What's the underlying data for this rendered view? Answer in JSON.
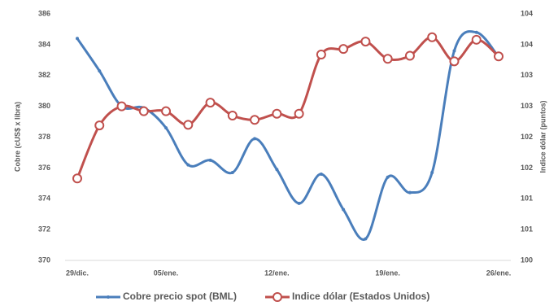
{
  "chart_data": {
    "type": "line",
    "categories": [
      "29/dic.",
      null,
      null,
      null,
      "05/ene.",
      null,
      null,
      null,
      null,
      "12/ene.",
      null,
      null,
      null,
      null,
      "19/ene.",
      null,
      null,
      null,
      null,
      "26/ene."
    ],
    "ylabel": "Cobre (cUS$ x libra)",
    "y2label": "Indice dólar (puntos)",
    "ylim": [
      370,
      386
    ],
    "yticks": [
      370,
      372,
      374,
      376,
      378,
      380,
      382,
      384,
      386
    ],
    "y2lim": [
      100,
      104
    ],
    "y2ticks": [
      100,
      {
        "value": 100.5,
        "label": "101"
      },
      101,
      {
        "value": 101.5,
        "label": "102"
      },
      102,
      {
        "value": 102.5,
        "label": "103"
      },
      103,
      {
        "value": 103.5,
        "label": "104"
      },
      104
    ],
    "series": [
      {
        "name": "Cobre precio spot (BML)",
        "color": "#4a7ebb",
        "marker": "dot",
        "values": [
          384.4,
          382.3,
          380.0,
          379.9,
          378.6,
          376.2,
          376.5,
          375.7,
          377.9,
          375.9,
          373.7,
          375.6,
          373.3,
          371.4,
          375.4,
          374.4,
          375.7,
          383.6,
          384.8,
          383.2
        ]
      },
      {
        "name": "Indice dólar (Estados Unidos)",
        "color": "#c0504d",
        "marker": "ring",
        "axis": "y2",
        "values": [
          101.33,
          102.19,
          102.5,
          102.42,
          102.42,
          102.2,
          102.56,
          102.35,
          102.28,
          102.38,
          102.38,
          103.34,
          103.43,
          103.55,
          103.27,
          103.32,
          103.62,
          103.23,
          103.58,
          103.31
        ]
      }
    ],
    "legend": "bottom"
  }
}
